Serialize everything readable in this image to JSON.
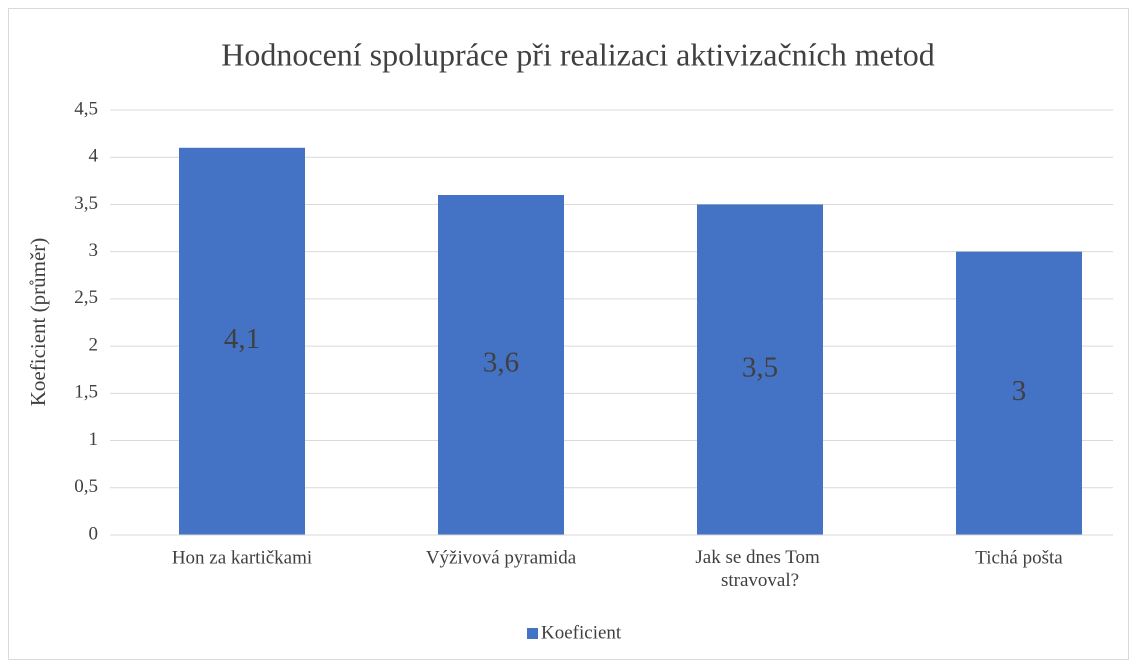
{
  "chart_data": {
    "type": "bar",
    "title": "Hodnocení spolupráce při realizaci aktivizačních metod",
    "y_label": "Koeficient (průměr)",
    "categories": [
      "Hon za kartičkami",
      "Výživová pyramida",
      "Jak se dnes Tom stravoval?",
      "Tichá pošta"
    ],
    "series": [
      {
        "name": "Koeficient",
        "color": "#4472c4",
        "values": [
          4.1,
          3.6,
          3.5,
          3
        ],
        "value_labels": [
          "4,1",
          "3,6",
          "3,5",
          "3"
        ]
      }
    ],
    "ylim": [
      0,
      4.5
    ],
    "yticks": [
      0,
      {
        "value": 0.5,
        "label": "0,5"
      },
      1,
      {
        "value": 1.5,
        "label": "1,5"
      },
      2,
      {
        "value": 2.5,
        "label": "2,5"
      },
      3,
      {
        "value": 3.5,
        "label": "3,5"
      },
      4,
      {
        "value": 4.5,
        "label": "4,5"
      }
    ],
    "grid": true,
    "legend": "bottom"
  }
}
